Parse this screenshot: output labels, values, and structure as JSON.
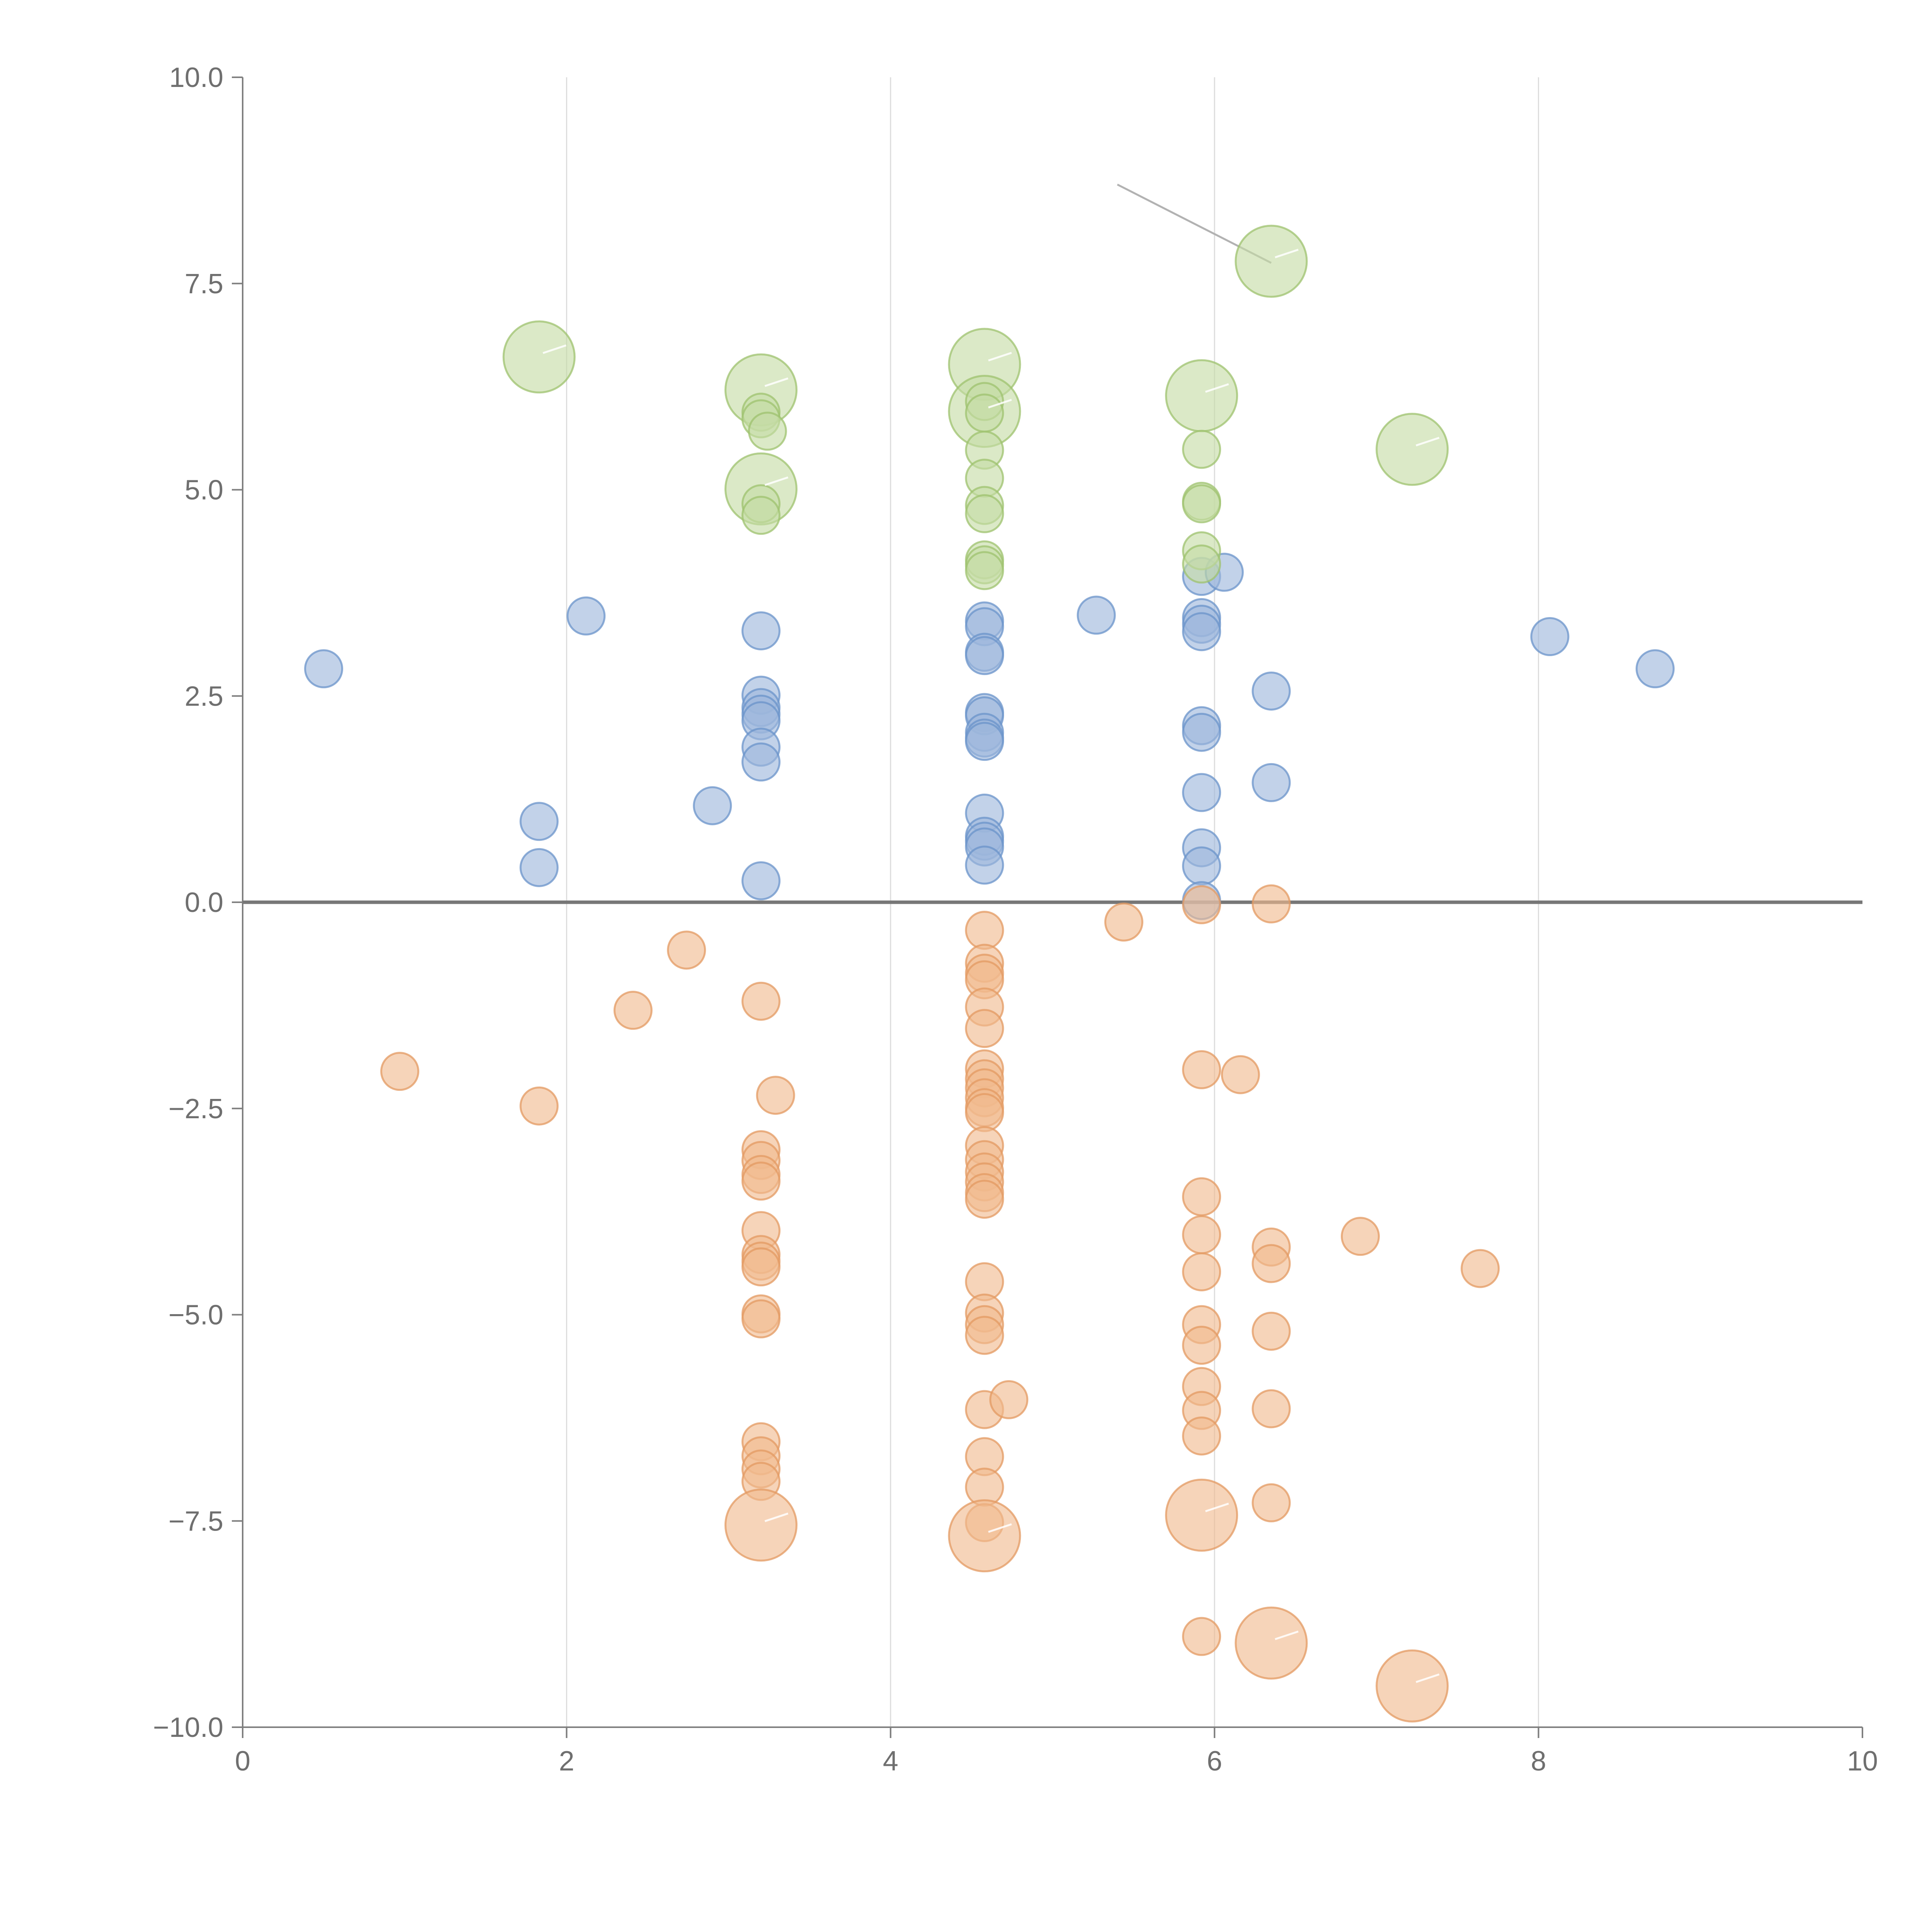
{
  "chart_data": {
    "type": "scatter",
    "title": "",
    "xlabel": "",
    "ylabel": "",
    "xlim": [
      0,
      10
    ],
    "ylim": [
      -10,
      10
    ],
    "x_ticks": [
      0,
      2,
      4,
      6,
      8,
      10
    ],
    "x_tick_labels": [
      "0",
      "2",
      "4",
      "6",
      "8",
      "10"
    ],
    "y_ticks": [
      -10,
      -7.5,
      -5,
      -2.5,
      0,
      2.5,
      5,
      7.5,
      10
    ],
    "y_tick_labels": [
      "−10.0",
      "−7.5",
      "−5.0",
      "−2.5",
      "0.0",
      "2.5",
      "5.0",
      "7.5",
      "10.0"
    ],
    "grid": "vertical",
    "zero_line": 0,
    "colors": {
      "blue_fill": "#9db7dc",
      "blue_stroke": "#6a93c9",
      "orange_fill": "#f1b98e",
      "orange_stroke": "#e39a62",
      "green_fill": "#c5dca4",
      "green_stroke": "#9dc26d",
      "axis": "#7f7f7f",
      "grid": "#dcdcdc",
      "text": "#6f6f6f"
    },
    "size_scale_note": "size values are relative bubble sizes (1 = smallest)",
    "annotation": {
      "from": [
        5.4,
        8.7
      ],
      "to": [
        6.35,
        7.75
      ]
    },
    "series": [
      {
        "name": "blue",
        "points": [
          [
            0.5,
            2.83,
            1
          ],
          [
            1.83,
            0.98,
            1
          ],
          [
            1.83,
            0.42,
            1
          ],
          [
            2.12,
            3.47,
            1
          ],
          [
            2.9,
            1.17,
            1
          ],
          [
            3.2,
            3.29,
            1
          ],
          [
            3.2,
            2.51,
            1
          ],
          [
            3.2,
            2.36,
            1
          ],
          [
            3.2,
            2.28,
            1
          ],
          [
            3.2,
            2.2,
            1
          ],
          [
            3.2,
            1.88,
            1
          ],
          [
            3.2,
            1.7,
            1
          ],
          [
            3.2,
            0.26,
            1
          ],
          [
            4.58,
            3.41,
            1
          ],
          [
            4.58,
            3.34,
            1
          ],
          [
            4.58,
            3.03,
            1
          ],
          [
            4.58,
            2.99,
            1
          ],
          [
            4.58,
            2.3,
            1
          ],
          [
            4.58,
            2.26,
            1
          ],
          [
            4.58,
            2.06,
            1
          ],
          [
            4.58,
            1.99,
            1
          ],
          [
            4.58,
            1.95,
            1
          ],
          [
            4.58,
            1.08,
            1
          ],
          [
            4.58,
            0.8,
            1
          ],
          [
            4.58,
            0.74,
            1
          ],
          [
            4.58,
            0.67,
            1
          ],
          [
            4.58,
            0.45,
            1
          ],
          [
            5.27,
            3.48,
            1
          ],
          [
            5.92,
            3.95,
            1
          ],
          [
            6.06,
            4.0,
            1
          ],
          [
            5.92,
            3.45,
            1
          ],
          [
            5.92,
            3.37,
            1
          ],
          [
            5.92,
            3.28,
            1
          ],
          [
            5.92,
            2.14,
            1
          ],
          [
            5.92,
            2.06,
            1
          ],
          [
            5.92,
            1.33,
            1
          ],
          [
            5.92,
            0.66,
            1
          ],
          [
            5.92,
            0.44,
            1
          ],
          [
            5.92,
            0.02,
            1
          ],
          [
            6.35,
            2.56,
            1
          ],
          [
            6.35,
            1.45,
            1
          ],
          [
            8.07,
            3.22,
            1
          ],
          [
            8.72,
            2.83,
            1
          ]
        ]
      },
      {
        "name": "orange",
        "points": [
          [
            0.97,
            -2.05,
            1
          ],
          [
            1.83,
            -2.47,
            1
          ],
          [
            2.41,
            -1.31,
            1
          ],
          [
            2.74,
            -0.58,
            1
          ],
          [
            3.2,
            -1.2,
            1
          ],
          [
            3.29,
            -2.34,
            1
          ],
          [
            3.2,
            -3.0,
            1
          ],
          [
            3.2,
            -3.13,
            1
          ],
          [
            3.2,
            -3.3,
            1
          ],
          [
            3.2,
            -3.38,
            1
          ],
          [
            3.2,
            -3.98,
            1
          ],
          [
            3.2,
            -4.27,
            1
          ],
          [
            3.2,
            -4.35,
            1
          ],
          [
            3.2,
            -4.42,
            1
          ],
          [
            3.2,
            -4.99,
            1
          ],
          [
            3.2,
            -5.05,
            1
          ],
          [
            3.2,
            -6.54,
            1
          ],
          [
            3.2,
            -6.71,
            1
          ],
          [
            3.2,
            -6.87,
            1
          ],
          [
            3.2,
            -7.02,
            1
          ],
          [
            3.2,
            -7.55,
            3
          ],
          [
            4.58,
            -0.34,
            1
          ],
          [
            4.58,
            -0.74,
            1
          ],
          [
            4.58,
            -0.86,
            1
          ],
          [
            4.58,
            -0.94,
            1
          ],
          [
            4.58,
            -1.27,
            1
          ],
          [
            4.58,
            -1.53,
            1
          ],
          [
            4.58,
            -2.02,
            1
          ],
          [
            4.58,
            -2.14,
            1
          ],
          [
            4.58,
            -2.25,
            1
          ],
          [
            4.58,
            -2.37,
            1
          ],
          [
            4.58,
            -2.49,
            1
          ],
          [
            4.58,
            -2.55,
            1
          ],
          [
            4.58,
            -2.95,
            1
          ],
          [
            4.58,
            -3.12,
            1
          ],
          [
            4.58,
            -3.27,
            1
          ],
          [
            4.58,
            -3.39,
            1
          ],
          [
            4.58,
            -3.52,
            1
          ],
          [
            4.58,
            -3.6,
            1
          ],
          [
            4.58,
            -4.6,
            1
          ],
          [
            4.58,
            -4.98,
            1
          ],
          [
            4.58,
            -5.12,
            1
          ],
          [
            4.58,
            -5.25,
            1
          ],
          [
            4.58,
            -6.15,
            1
          ],
          [
            4.73,
            -6.03,
            1
          ],
          [
            4.58,
            -6.72,
            1
          ],
          [
            4.58,
            -7.09,
            1
          ],
          [
            4.58,
            -7.52,
            1
          ],
          [
            4.58,
            -7.68,
            3
          ],
          [
            5.44,
            -0.24,
            1
          ],
          [
            5.92,
            -0.03,
            1
          ],
          [
            5.92,
            -2.03,
            1
          ],
          [
            6.16,
            -2.09,
            1
          ],
          [
            5.92,
            -3.57,
            1
          ],
          [
            5.92,
            -4.03,
            1
          ],
          [
            5.92,
            -4.48,
            1
          ],
          [
            5.92,
            -5.12,
            1
          ],
          [
            5.92,
            -5.37,
            1
          ],
          [
            5.92,
            -5.87,
            1
          ],
          [
            5.92,
            -6.16,
            1
          ],
          [
            5.92,
            -6.47,
            1
          ],
          [
            5.92,
            -7.43,
            3
          ],
          [
            5.92,
            -8.9,
            1
          ],
          [
            6.35,
            -0.02,
            1
          ],
          [
            6.35,
            -4.18,
            1
          ],
          [
            6.35,
            -4.38,
            1
          ],
          [
            6.35,
            -5.2,
            1
          ],
          [
            6.35,
            -6.14,
            1
          ],
          [
            6.35,
            -7.28,
            1
          ],
          [
            6.35,
            -8.98,
            3
          ],
          [
            6.9,
            -4.05,
            1
          ],
          [
            7.22,
            -9.5,
            3
          ],
          [
            7.64,
            -4.44,
            1
          ]
        ]
      },
      {
        "name": "green",
        "points": [
          [
            1.83,
            6.61,
            3
          ],
          [
            3.2,
            6.21,
            3
          ],
          [
            3.2,
            5.94,
            1
          ],
          [
            3.2,
            5.86,
            1
          ],
          [
            3.24,
            5.71,
            1
          ],
          [
            3.2,
            5.01,
            3
          ],
          [
            3.2,
            4.83,
            1
          ],
          [
            3.2,
            4.69,
            1
          ],
          [
            4.58,
            6.52,
            3
          ],
          [
            4.58,
            5.95,
            3
          ],
          [
            4.58,
            6.07,
            1
          ],
          [
            4.58,
            5.93,
            1
          ],
          [
            4.58,
            5.48,
            1
          ],
          [
            4.58,
            5.14,
            1
          ],
          [
            4.58,
            4.81,
            1
          ],
          [
            4.58,
            4.71,
            1
          ],
          [
            4.58,
            4.15,
            1
          ],
          [
            4.58,
            4.09,
            1
          ],
          [
            4.58,
            4.02,
            1
          ],
          [
            5.92,
            6.14,
            3
          ],
          [
            5.92,
            5.49,
            1
          ],
          [
            5.92,
            4.86,
            1
          ],
          [
            5.92,
            4.83,
            1
          ],
          [
            5.92,
            4.26,
            1
          ],
          [
            5.92,
            4.1,
            1
          ],
          [
            6.35,
            7.77,
            3
          ],
          [
            7.22,
            5.49,
            3
          ]
        ]
      }
    ]
  }
}
